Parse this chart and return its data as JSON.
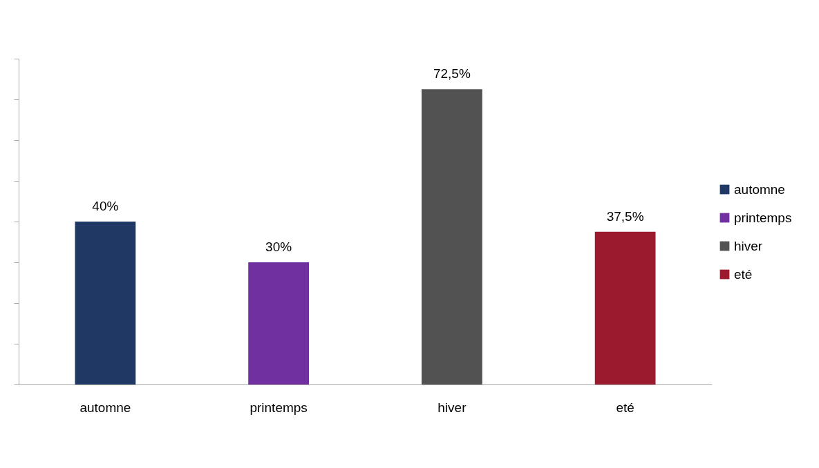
{
  "chart_data": {
    "type": "bar",
    "categories": [
      "automne",
      "printemps",
      "hiver",
      "eté"
    ],
    "stacked": true,
    "series": [
      {
        "name": "automne",
        "color": "#203864",
        "values": [
          40,
          null,
          null,
          null
        ],
        "value_labels": [
          "40%",
          null,
          null,
          null
        ]
      },
      {
        "name": "printemps",
        "color": "#7030a0",
        "values": [
          null,
          30,
          null,
          null
        ],
        "value_labels": [
          null,
          "30%",
          null,
          null
        ]
      },
      {
        "name": "hiver",
        "color": "#525252",
        "values": [
          null,
          null,
          72.5,
          null
        ],
        "value_labels": [
          null,
          null,
          "72,5%",
          null
        ]
      },
      {
        "name": "eté",
        "color": "#9c1a2e",
        "values": [
          null,
          null,
          null,
          37.5
        ],
        "value_labels": [
          null,
          null,
          null,
          "37,5%"
        ]
      }
    ],
    "ylim": [
      0,
      80
    ],
    "yticks": [
      {
        "value": 0,
        "label": null
      },
      {
        "value": 10,
        "label": null
      },
      {
        "value": 20,
        "label": null
      },
      {
        "value": 30,
        "label": null
      },
      {
        "value": 40,
        "label": null
      },
      {
        "value": 50,
        "label": null
      },
      {
        "value": 60,
        "label": null
      },
      {
        "value": 70,
        "label": null
      },
      {
        "value": 80,
        "label": null
      }
    ],
    "tick_labels": "x",
    "legend": "right"
  }
}
